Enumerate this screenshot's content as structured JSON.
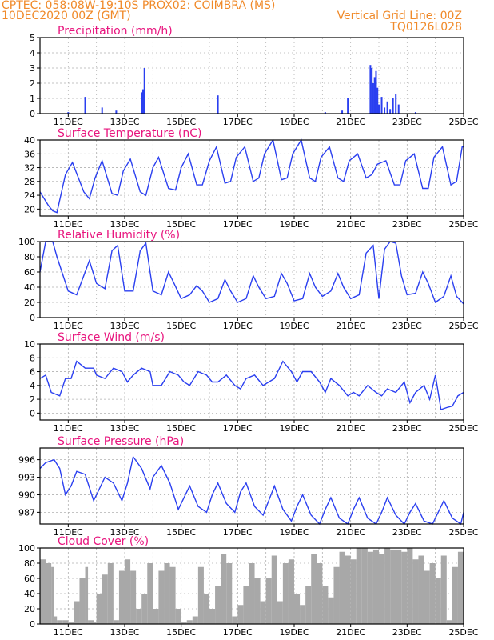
{
  "header": {
    "line1_left": "CPTEC:   058:08W-19:10S   PROX02: COIMBRA (MS)",
    "line2_left": "10DEC2020 00Z (GMT)",
    "line2_right": "Vertical Grid Line: 00Z",
    "line3_right": "TQ0126L028"
  },
  "colors": {
    "series": "#2a3ff0",
    "title": "#e8157e",
    "header": "#f08a2a",
    "cloud": "#a8a8a8"
  },
  "x_ticks": [
    "11DEC",
    "13DEC",
    "15DEC",
    "17DEC",
    "19DEC",
    "21DEC",
    "23DEC",
    "25DEC"
  ],
  "chart_data": [
    {
      "type": "bar",
      "title": "Precipitation (mm/h)",
      "ylim": [
        0,
        5
      ],
      "yticks": [
        0,
        1,
        2,
        3,
        4,
        5
      ],
      "x": [
        11.0,
        11.6,
        12.2,
        12.7,
        13.6,
        13.65,
        13.7,
        16.3,
        20.1,
        20.7,
        20.9,
        21.7,
        21.75,
        21.8,
        21.85,
        21.9,
        21.95,
        22.0,
        22.1,
        22.2,
        22.3,
        22.4,
        22.5,
        22.6,
        22.7,
        23.3
      ],
      "values": [
        0.1,
        1.1,
        0.4,
        0.2,
        1.4,
        1.6,
        3.0,
        1.2,
        0.1,
        0.2,
        1.0,
        3.2,
        3.0,
        2.0,
        2.4,
        2.8,
        1.7,
        0.6,
        1.1,
        0.4,
        0.8,
        0.3,
        1.0,
        1.3,
        0.6,
        0.1
      ]
    },
    {
      "type": "line",
      "title": "Surface Temperature (nC)",
      "ylim": [
        18,
        40
      ],
      "yticks": [
        20,
        24,
        28,
        32,
        36,
        40
      ],
      "x": [
        10.0,
        10.3,
        10.45,
        10.6,
        10.9,
        11.15,
        11.55,
        11.75,
        11.95,
        12.2,
        12.55,
        12.75,
        12.95,
        13.2,
        13.55,
        13.75,
        14.0,
        14.2,
        14.55,
        14.8,
        15.0,
        15.25,
        15.55,
        15.75,
        16.0,
        16.25,
        16.55,
        16.75,
        16.95,
        17.25,
        17.55,
        17.75,
        17.95,
        18.25,
        18.55,
        18.75,
        18.95,
        19.25,
        19.55,
        19.75,
        19.95,
        20.25,
        20.55,
        20.75,
        20.95,
        21.25,
        21.55,
        21.75,
        21.95,
        22.25,
        22.55,
        22.75,
        22.95,
        23.25,
        23.55,
        23.75,
        23.95,
        24.25,
        24.55,
        24.75,
        24.95,
        25.0
      ],
      "values": [
        25,
        21,
        19.5,
        19,
        30,
        33.5,
        25,
        23,
        29,
        34,
        24.5,
        24,
        31,
        34.5,
        25,
        24,
        32,
        35,
        26,
        25.5,
        32,
        36,
        27,
        27,
        34,
        38,
        27.5,
        28,
        35,
        38,
        28,
        29,
        36,
        40,
        28.5,
        29,
        36,
        40,
        29,
        28,
        35,
        38,
        29,
        28,
        34,
        36,
        29,
        30,
        33,
        34,
        27,
        27,
        34,
        36,
        26,
        26,
        35,
        38,
        27,
        28,
        38,
        38
      ]
    },
    {
      "type": "line",
      "title": "Relative Humidity (%)",
      "ylim": [
        0,
        100
      ],
      "yticks": [
        0,
        20,
        40,
        60,
        80,
        100
      ],
      "x": [
        10.0,
        10.2,
        10.45,
        10.6,
        11.0,
        11.3,
        11.75,
        12.0,
        12.3,
        12.55,
        12.75,
        13.0,
        13.3,
        13.55,
        13.75,
        14.0,
        14.3,
        14.55,
        14.75,
        15.0,
        15.3,
        15.55,
        15.75,
        16.0,
        16.3,
        16.55,
        16.75,
        17.0,
        17.3,
        17.55,
        17.75,
        18.0,
        18.3,
        18.55,
        18.75,
        19.0,
        19.3,
        19.55,
        19.75,
        20.0,
        20.3,
        20.55,
        20.75,
        21.0,
        21.3,
        21.55,
        21.8,
        22.0,
        22.2,
        22.4,
        22.6,
        22.8,
        23.0,
        23.3,
        23.55,
        23.75,
        24.0,
        24.3,
        24.55,
        24.75,
        25.0
      ],
      "values": [
        60,
        100,
        100,
        80,
        35,
        30,
        75,
        45,
        38,
        88,
        95,
        35,
        35,
        88,
        98,
        35,
        30,
        60,
        45,
        25,
        30,
        42,
        35,
        20,
        25,
        50,
        35,
        20,
        25,
        55,
        40,
        25,
        28,
        58,
        45,
        22,
        25,
        58,
        40,
        28,
        35,
        58,
        40,
        25,
        30,
        85,
        95,
        25,
        90,
        100,
        98,
        55,
        30,
        32,
        60,
        45,
        20,
        28,
        55,
        28,
        18
      ]
    },
    {
      "type": "line",
      "title": "Surface Wind (m/s)",
      "ylim": [
        -1,
        10
      ],
      "yticks": [
        0,
        2,
        4,
        6,
        8,
        10
      ],
      "x": [
        10.0,
        10.2,
        10.4,
        10.7,
        10.9,
        11.1,
        11.3,
        11.6,
        11.9,
        12.0,
        12.3,
        12.6,
        12.9,
        13.1,
        13.3,
        13.6,
        13.9,
        14.0,
        14.3,
        14.6,
        14.9,
        15.1,
        15.3,
        15.6,
        15.9,
        16.1,
        16.3,
        16.6,
        16.9,
        17.1,
        17.3,
        17.6,
        17.9,
        18.1,
        18.3,
        18.6,
        18.9,
        19.1,
        19.3,
        19.6,
        19.9,
        20.1,
        20.3,
        20.6,
        20.9,
        21.1,
        21.3,
        21.6,
        21.9,
        22.1,
        22.3,
        22.6,
        22.9,
        23.1,
        23.3,
        23.6,
        23.8,
        24.0,
        24.2,
        24.4,
        24.6,
        24.8,
        25.0
      ],
      "values": [
        5,
        5.5,
        3,
        2.5,
        5,
        5,
        7.5,
        6.5,
        6.5,
        5.5,
        5,
        6.5,
        6,
        4.5,
        5.5,
        6.5,
        6,
        4,
        4,
        6,
        5.5,
        4.5,
        4,
        6,
        5.5,
        4.5,
        4.5,
        5.5,
        4,
        3.5,
        5,
        5.5,
        4,
        4.5,
        5,
        7.5,
        6,
        4.5,
        6,
        6,
        4.5,
        3,
        5,
        4,
        2.5,
        3,
        2.5,
        4,
        3,
        2.5,
        3.5,
        3,
        4.5,
        1.5,
        3,
        4,
        2,
        5.5,
        0.5,
        0.8,
        1,
        2.5,
        3
      ]
    },
    {
      "type": "line",
      "title": "Surface Pressure (hPa)",
      "ylim": [
        985,
        998
      ],
      "yticks": [
        987,
        990,
        993,
        996
      ],
      "x": [
        10.0,
        10.2,
        10.5,
        10.7,
        10.9,
        11.1,
        11.3,
        11.6,
        11.9,
        12.0,
        12.3,
        12.6,
        12.9,
        13.1,
        13.3,
        13.6,
        13.9,
        14.0,
        14.3,
        14.6,
        14.9,
        15.1,
        15.3,
        15.6,
        15.9,
        16.1,
        16.3,
        16.6,
        16.9,
        17.1,
        17.3,
        17.6,
        17.9,
        18.1,
        18.3,
        18.6,
        18.9,
        19.1,
        19.3,
        19.6,
        19.9,
        20.1,
        20.3,
        20.6,
        20.9,
        21.1,
        21.3,
        21.6,
        21.9,
        22.1,
        22.3,
        22.6,
        22.9,
        23.1,
        23.3,
        23.6,
        23.9,
        24.1,
        24.3,
        24.6,
        24.9,
        25.0
      ],
      "values": [
        994.5,
        995.5,
        996,
        994.5,
        990,
        991.5,
        994,
        993.5,
        989,
        990,
        993,
        992,
        989,
        992,
        996.5,
        994.5,
        991,
        993,
        995,
        992,
        987.5,
        989.5,
        991.5,
        988,
        987,
        990,
        992,
        988.5,
        987,
        990.5,
        992,
        988,
        986.5,
        989,
        991.5,
        987.5,
        985.5,
        988,
        990,
        986.5,
        985,
        987.5,
        989.5,
        986,
        985,
        987.5,
        989.5,
        986,
        985,
        987,
        989.5,
        986.5,
        985,
        987,
        988.5,
        985.5,
        985,
        987,
        989,
        986,
        985,
        987
      ]
    },
    {
      "type": "area",
      "title": "Cloud Cover (%)",
      "ylim": [
        0,
        100
      ],
      "yticks": [
        0,
        20,
        40,
        60,
        80,
        100
      ],
      "x": [
        10.0,
        10.2,
        10.4,
        10.5,
        10.6,
        10.8,
        11.0,
        11.2,
        11.4,
        11.6,
        11.7,
        11.9,
        12.0,
        12.2,
        12.4,
        12.6,
        12.8,
        13.0,
        13.2,
        13.4,
        13.6,
        13.8,
        14.0,
        14.2,
        14.4,
        14.6,
        14.8,
        15.0,
        15.2,
        15.4,
        15.6,
        15.8,
        16.0,
        16.2,
        16.4,
        16.6,
        16.8,
        17.0,
        17.2,
        17.4,
        17.6,
        17.8,
        18.0,
        18.2,
        18.4,
        18.6,
        18.8,
        19.0,
        19.2,
        19.4,
        19.6,
        19.8,
        20.0,
        20.2,
        20.4,
        20.6,
        20.8,
        21.0,
        21.2,
        21.4,
        21.6,
        21.8,
        22.0,
        22.2,
        22.4,
        22.6,
        22.8,
        23.0,
        23.2,
        23.4,
        23.6,
        23.8,
        24.0,
        24.2,
        24.4,
        24.6,
        24.8,
        25.0
      ],
      "values": [
        85,
        80,
        75,
        10,
        5,
        5,
        2,
        30,
        60,
        75,
        5,
        2,
        40,
        65,
        80,
        5,
        70,
        85,
        70,
        20,
        40,
        80,
        20,
        70,
        80,
        75,
        20,
        2,
        5,
        10,
        75,
        40,
        20,
        50,
        92,
        80,
        10,
        25,
        50,
        80,
        60,
        30,
        60,
        90,
        30,
        80,
        85,
        40,
        25,
        50,
        92,
        80,
        50,
        35,
        75,
        95,
        90,
        85,
        100,
        100,
        95,
        98,
        92,
        100,
        98,
        98,
        95,
        100,
        85,
        90,
        70,
        80,
        60,
        90,
        5,
        75,
        95,
        30
      ]
    }
  ]
}
